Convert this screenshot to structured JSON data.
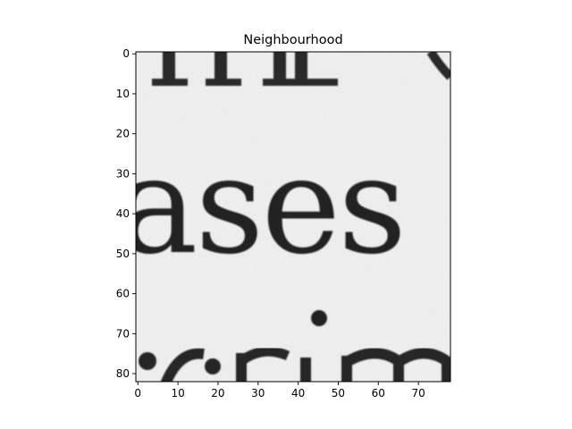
{
  "figure": {
    "title": "Neighbourhood",
    "image_subject": "grayscale crop of printed serif text",
    "visible_text": [
      "ases"
    ]
  },
  "chart_data": {
    "type": "heatmap",
    "title": "Neighbourhood",
    "xlabel": "",
    "ylabel": "",
    "xlim": [
      0,
      78
    ],
    "ylim": [
      82,
      0
    ],
    "xticks": [
      0,
      10,
      20,
      30,
      40,
      50,
      60,
      70
    ],
    "yticks": [
      0,
      10,
      20,
      30,
      40,
      50,
      60,
      70,
      80
    ],
    "grid": false,
    "colormap": "gray",
    "colors": {
      "background": "#efefef",
      "ink": "#232323",
      "axes": "#000000"
    }
  }
}
